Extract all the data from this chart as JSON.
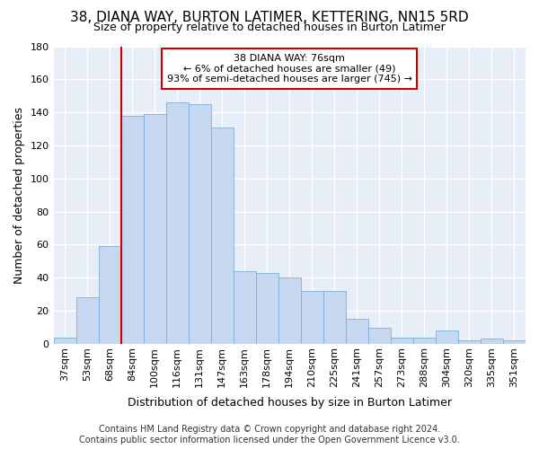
{
  "title": "38, DIANA WAY, BURTON LATIMER, KETTERING, NN15 5RD",
  "subtitle": "Size of property relative to detached houses in Burton Latimer",
  "xlabel": "Distribution of detached houses by size in Burton Latimer",
  "ylabel": "Number of detached properties",
  "categories": [
    "37sqm",
    "53sqm",
    "68sqm",
    "84sqm",
    "100sqm",
    "116sqm",
    "131sqm",
    "147sqm",
    "163sqm",
    "178sqm",
    "194sqm",
    "210sqm",
    "225sqm",
    "241sqm",
    "257sqm",
    "273sqm",
    "288sqm",
    "304sqm",
    "320sqm",
    "335sqm",
    "351sqm"
  ],
  "values": [
    4,
    28,
    59,
    138,
    139,
    146,
    145,
    131,
    44,
    43,
    40,
    32,
    32,
    15,
    10,
    4,
    4,
    8,
    2,
    3,
    2
  ],
  "bar_color": "#c5d8f0",
  "bar_edge_color": "#7fafd4",
  "annotation_text_line1": "38 DIANA WAY: 76sqm",
  "annotation_text_line2": "← 6% of detached houses are smaller (49)",
  "annotation_text_line3": "93% of semi-detached houses are larger (745) →",
  "annotation_box_edge_color": "#cc0000",
  "vline_color": "#cc0000",
  "vline_x": 2.5,
  "ylim": [
    0,
    180
  ],
  "yticks": [
    0,
    20,
    40,
    60,
    80,
    100,
    120,
    140,
    160,
    180
  ],
  "footer_line1": "Contains HM Land Registry data © Crown copyright and database right 2024.",
  "footer_line2": "Contains public sector information licensed under the Open Government Licence v3.0.",
  "plot_bg_color": "#e8eef8",
  "grid_color": "#ffffff",
  "title_fontsize": 11,
  "subtitle_fontsize": 9,
  "ylabel_fontsize": 9,
  "xlabel_fontsize": 9,
  "tick_fontsize": 8,
  "annotation_fontsize": 8,
  "footer_fontsize": 7
}
